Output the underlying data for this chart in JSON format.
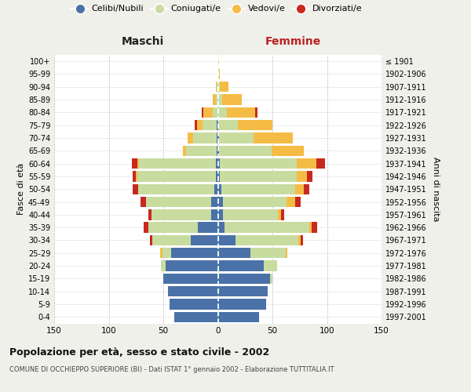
{
  "age_groups": [
    "0-4",
    "5-9",
    "10-14",
    "15-19",
    "20-24",
    "25-29",
    "30-34",
    "35-39",
    "40-44",
    "45-49",
    "50-54",
    "55-59",
    "60-64",
    "65-69",
    "70-74",
    "75-79",
    "80-84",
    "85-89",
    "90-94",
    "95-99",
    "100+"
  ],
  "birth_years": [
    "1997-2001",
    "1992-1996",
    "1987-1991",
    "1982-1986",
    "1977-1981",
    "1972-1976",
    "1967-1971",
    "1962-1966",
    "1957-1961",
    "1952-1956",
    "1947-1951",
    "1942-1946",
    "1937-1941",
    "1932-1936",
    "1927-1931",
    "1922-1926",
    "1917-1921",
    "1912-1916",
    "1907-1911",
    "1902-1906",
    "≤ 1901"
  ],
  "males_celibe": [
    40,
    44,
    46,
    50,
    48,
    43,
    25,
    18,
    6,
    6,
    3,
    2,
    2,
    1,
    1,
    1,
    0,
    0,
    0,
    0,
    0
  ],
  "males_coniugato": [
    0,
    0,
    0,
    0,
    4,
    8,
    35,
    46,
    55,
    60,
    70,
    72,
    70,
    28,
    22,
    13,
    5,
    2,
    1,
    0,
    0
  ],
  "males_vedovo": [
    0,
    0,
    0,
    0,
    0,
    2,
    0,
    0,
    0,
    0,
    0,
    1,
    2,
    3,
    5,
    5,
    8,
    3,
    1,
    0,
    0
  ],
  "males_divorziato": [
    0,
    0,
    0,
    0,
    0,
    0,
    2,
    4,
    3,
    5,
    5,
    3,
    5,
    0,
    0,
    2,
    2,
    0,
    0,
    0,
    0
  ],
  "females_nubile": [
    38,
    44,
    46,
    48,
    42,
    30,
    16,
    6,
    5,
    5,
    3,
    2,
    2,
    1,
    1,
    0,
    0,
    0,
    0,
    0,
    0
  ],
  "females_coniugata": [
    0,
    0,
    0,
    2,
    12,
    32,
    58,
    78,
    50,
    58,
    68,
    70,
    70,
    48,
    32,
    18,
    8,
    4,
    2,
    1,
    0
  ],
  "females_vedova": [
    0,
    0,
    0,
    0,
    0,
    2,
    2,
    2,
    3,
    8,
    8,
    10,
    18,
    30,
    36,
    32,
    26,
    18,
    8,
    1,
    1
  ],
  "females_divorziata": [
    0,
    0,
    0,
    0,
    0,
    0,
    2,
    5,
    3,
    5,
    5,
    5,
    8,
    0,
    0,
    0,
    2,
    0,
    0,
    0,
    0
  ],
  "color_celibe": "#4a72a8",
  "color_coniugato": "#c8dca0",
  "color_vedovo": "#f5bc45",
  "color_divorziato": "#c8291e",
  "xlim": 150,
  "bg_color": "#f0f0eb",
  "plot_bg": "#ffffff",
  "title": "Popolazione per età, sesso e stato civile - 2002",
  "subtitle": "COMUNE DI OCCHIEPPO SUPERIORE (BI) - Dati ISTAT 1° gennaio 2002 - Elaborazione TUTTITALIA.IT",
  "ylabel_left": "Fasce di età",
  "ylabel_right": "Anni di nascita",
  "maschi_label": "Maschi",
  "femmine_label": "Femmine",
  "legend_labels": [
    "Celibi/Nubili",
    "Coniugati/e",
    "Vedovi/e",
    "Divorziati/e"
  ],
  "xticks": [
    -150,
    -100,
    -50,
    0,
    50,
    100,
    150
  ]
}
